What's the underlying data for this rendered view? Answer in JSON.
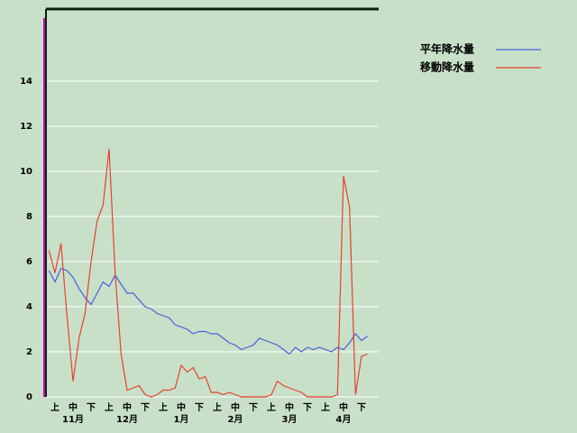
{
  "chart_data": {
    "type": "line",
    "categories": [
      null,
      "上",
      null,
      null,
      "中",
      null,
      null,
      "下",
      null,
      null,
      "上",
      null,
      null,
      "中",
      null,
      null,
      "下",
      null,
      null,
      "上",
      null,
      null,
      "中",
      null,
      null,
      "下",
      null,
      null,
      "上",
      null,
      null,
      "中",
      null,
      null,
      "下",
      null,
      null,
      "上",
      null,
      null,
      "中",
      null,
      null,
      "下",
      null,
      null,
      "上",
      null,
      null,
      "中",
      null,
      null,
      "下",
      null
    ],
    "months": [
      "11月",
      "12月",
      "1月",
      "2月",
      "3月",
      "4月"
    ],
    "series": [
      {
        "name": "平年降水量",
        "color": "#4a5ce0",
        "values": [
          5.6,
          5.1,
          5.7,
          5.6,
          5.3,
          4.8,
          4.4,
          4.1,
          4.6,
          5.1,
          4.9,
          5.4,
          5.0,
          4.6,
          4.6,
          4.3,
          4.0,
          3.9,
          3.7,
          3.6,
          3.5,
          3.2,
          3.1,
          3.0,
          2.8,
          2.9,
          2.9,
          2.8,
          2.8,
          2.6,
          2.4,
          2.3,
          2.1,
          2.2,
          2.3,
          2.6,
          2.5,
          2.4,
          2.3,
          2.1,
          1.9,
          2.2,
          2.0,
          2.2,
          2.1,
          2.2,
          2.1,
          2.0,
          2.2,
          2.1,
          2.4,
          2.8,
          2.5,
          2.7
        ]
      },
      {
        "name": "移動降水量",
        "color": "#e84030",
        "values": [
          6.5,
          5.5,
          6.8,
          3.6,
          0.7,
          2.6,
          3.7,
          6.0,
          7.8,
          8.5,
          11,
          5.5,
          1.9,
          0.3,
          0.4,
          0.5,
          0.1,
          0,
          0.1,
          0.3,
          0.3,
          0.4,
          1.4,
          1.1,
          1.3,
          0.8,
          0.9,
          0.2,
          0.2,
          0.1,
          0.2,
          0.1,
          0,
          0,
          0,
          0,
          0,
          0.1,
          0.7,
          0.5,
          0.4,
          0.3,
          0.2,
          0,
          0,
          0,
          0,
          0,
          0.1,
          9.8,
          8.4,
          0.1,
          1.8,
          1.9
        ]
      }
    ],
    "ylim": [
      0,
      17.2
    ],
    "yticks": [
      0,
      2,
      4,
      6,
      8,
      10,
      12,
      14
    ],
    "grid": true
  }
}
